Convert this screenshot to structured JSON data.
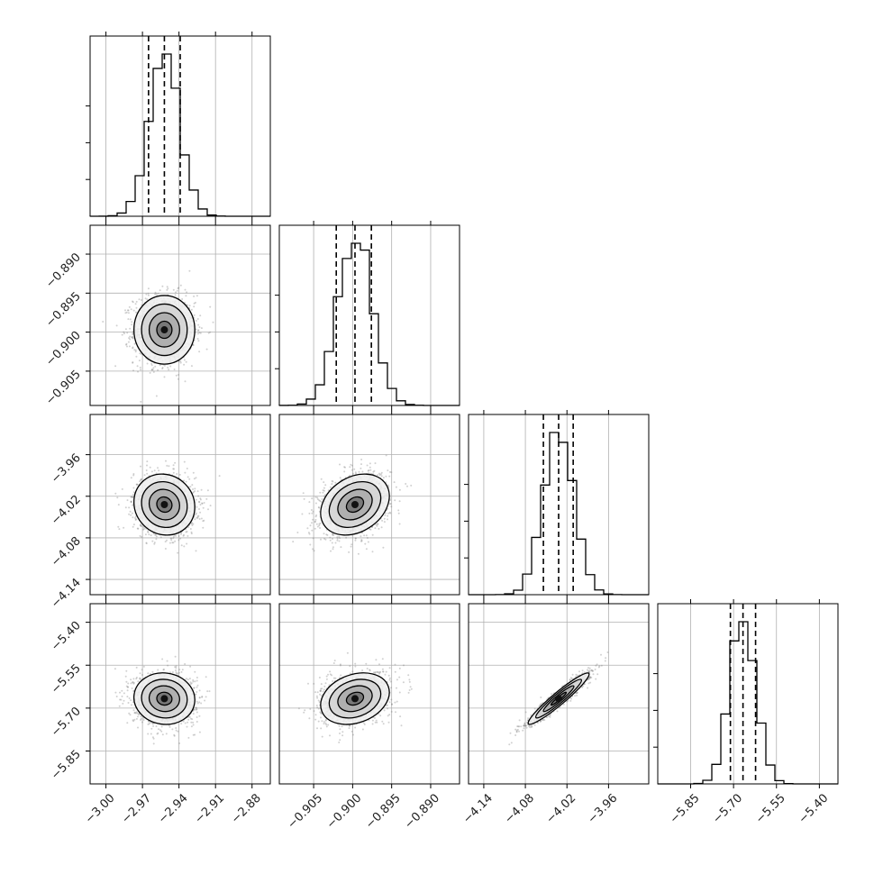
{
  "chart_data": {
    "type": "corner",
    "n_params": 4,
    "grid": true,
    "colors": {
      "line": "#000000",
      "grid": "#b0b0b0",
      "scatter": "#7a7a7a",
      "background": "#ffffff"
    },
    "axis_ranges": [
      [
        -3.013,
        -2.865
      ],
      [
        -0.9094,
        -0.8863
      ],
      [
        -4.162,
        -3.902
      ],
      [
        -5.965,
        -5.335
      ]
    ],
    "tick_labels": [
      [
        "−3.00",
        "−2.97",
        "−2.94",
        "−2.91",
        "−2.88"
      ],
      [
        "−0.905",
        "−0.900",
        "−0.895",
        "−0.890"
      ],
      [
        "−4.14",
        "−4.08",
        "−4.02",
        "−3.96"
      ],
      [
        "−5.85",
        "−5.70",
        "−5.55",
        "−5.40"
      ]
    ],
    "tick_values": [
      [
        -3.0,
        -2.97,
        -2.94,
        -2.91,
        -2.88
      ],
      [
        -0.905,
        -0.9,
        -0.895,
        -0.89
      ],
      [
        -4.14,
        -4.08,
        -4.02,
        -3.96
      ],
      [
        -5.85,
        -5.7,
        -5.55,
        -5.4
      ]
    ],
    "posteriors": [
      {
        "mean": -2.952,
        "sd": 0.0125,
        "q16": -2.965,
        "q50": -2.952,
        "q84": -2.939
      },
      {
        "mean": -0.8997,
        "sd": 0.0022,
        "q16": -0.9021,
        "q50": -0.8997,
        "q84": -0.8976
      },
      {
        "mean": -4.032,
        "sd": 0.022,
        "q16": -4.054,
        "q50": -4.032,
        "q84": -4.011
      },
      {
        "mean": -5.667,
        "sd": 0.045,
        "q16": -5.711,
        "q50": -5.667,
        "q84": -5.623
      }
    ],
    "correlations": [
      [
        1,
        0,
        -0.08,
        -0.05
      ],
      [
        0,
        1,
        0.28,
        0.25
      ],
      [
        -0.08,
        0.28,
        1,
        0.95
      ],
      [
        -0.05,
        0.25,
        0.95,
        1
      ]
    ],
    "contour_levels_sigma": [
      0.5,
      1.0,
      1.5,
      2.0
    ]
  }
}
